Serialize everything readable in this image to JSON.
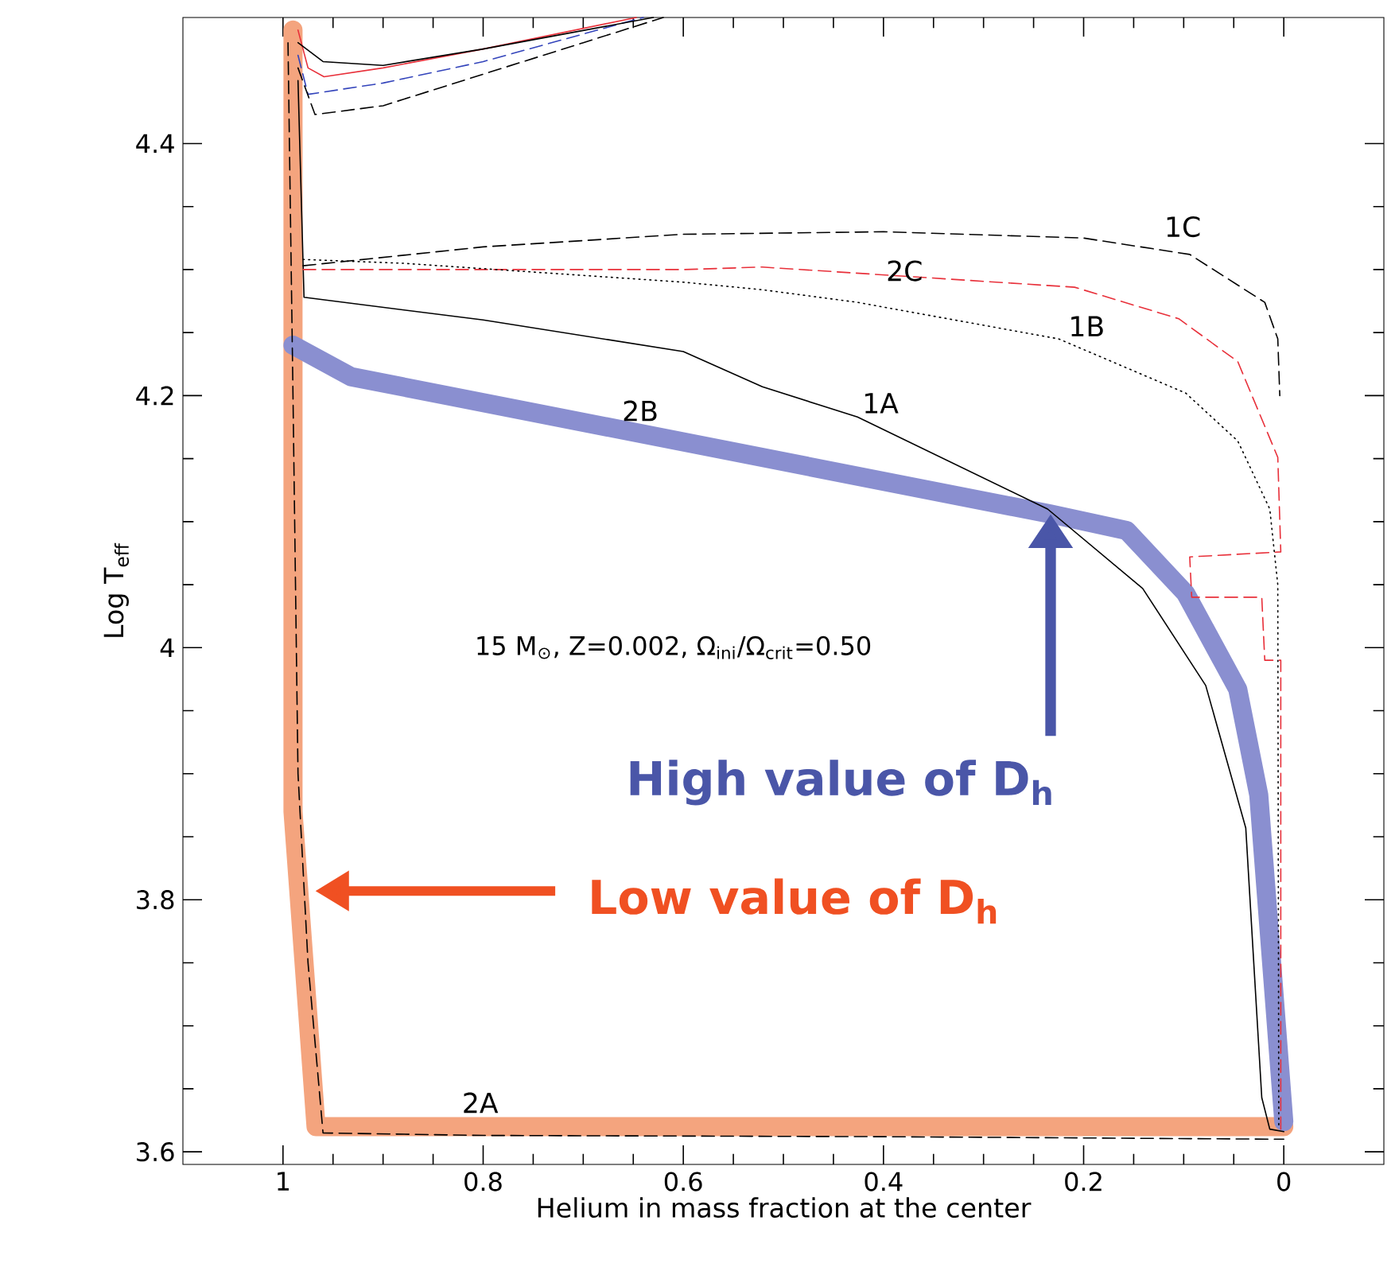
{
  "chart_data": {
    "type": "line",
    "xlabel": "Helium in mass fraction at the center",
    "ylabel": "Log T$_{eff}$",
    "xlim": [
      1.1,
      -0.1
    ],
    "ylim": [
      3.59,
      4.5
    ],
    "xticks": [
      1,
      0.8,
      0.6,
      0.4,
      0.2,
      0
    ],
    "yticks": [
      3.6,
      3.8,
      {
        "value": 4,
        "label": "4"
      },
      4.2,
      4.4
    ],
    "grid": false,
    "marker": "none",
    "series": [
      {
        "color": "#f4a47e",
        "line_style": "solid",
        "x": [
          0.99,
          0.99,
          0.967,
          0.0
        ],
        "values": [
          4.49,
          3.87,
          3.62,
          3.62
        ]
      },
      {
        "color": "#8a8fd0",
        "line_style": "solid",
        "x": [
          0.99,
          0.932,
          0.233,
          0.157,
          0.098,
          0.046,
          0.025,
          0.0
        ],
        "values": [
          4.24,
          4.215,
          4.106,
          4.093,
          4.043,
          3.967,
          3.883,
          3.624
        ]
      },
      {
        "color": "#000000",
        "line_style": "solid",
        "x": [
          0.985,
          0.979,
          0.8,
          0.6,
          0.521,
          0.426,
          0.236,
          0.141,
          0.078,
          0.038,
          0.022,
          0.014,
          0.0
        ],
        "values": [
          4.45,
          4.278,
          4.26,
          4.235,
          4.207,
          4.183,
          4.11,
          4.047,
          3.97,
          3.857,
          3.643,
          3.618,
          3.616
        ]
      },
      {
        "color": "#000000",
        "line_style": "dashed",
        "x": [
          0.98,
          0.8,
          0.6,
          0.4,
          0.2,
          0.094,
          0.019,
          0.006,
          0.004
        ],
        "values": [
          4.303,
          4.318,
          4.328,
          4.33,
          4.325,
          4.312,
          4.274,
          4.245,
          4.2
        ]
      },
      {
        "color": "#e8303a",
        "line_style": "dashed",
        "x": [
          0.98,
          0.6,
          0.521,
          0.209,
          0.105,
          0.046,
          0.006,
          0.003,
          0.094,
          0.092,
          0.022,
          0.019,
          0.003,
          0.003
        ],
        "values": [
          4.3,
          4.3,
          4.302,
          4.286,
          4.261,
          4.227,
          4.151,
          4.076,
          4.072,
          4.04,
          4.04,
          3.99,
          3.99,
          3.618
        ]
      },
      {
        "color": "#000000",
        "line_style": "dotted",
        "x": [
          0.98,
          0.88,
          0.6,
          0.521,
          0.426,
          0.225,
          0.098,
          0.046,
          0.014,
          0.006,
          0.005
        ],
        "values": [
          4.308,
          4.305,
          4.29,
          4.284,
          4.274,
          4.245,
          4.202,
          4.164,
          4.11,
          4.05,
          3.62
        ]
      },
      {
        "color": "#000000",
        "line_style": "dashed",
        "x": [
          0.995,
          0.99,
          0.985,
          0.975,
          0.96,
          0.8,
          0.4,
          0.0
        ],
        "values": [
          4.48,
          4.2,
          3.9,
          3.75,
          3.615,
          3.613,
          3.612,
          3.61
        ]
      },
      {
        "color": "#e8303a",
        "line_style": "solid",
        "x": [
          0.985,
          0.975,
          0.959,
          0.9,
          0.8,
          0.647
        ],
        "values": [
          4.49,
          4.46,
          4.453,
          4.46,
          4.475,
          4.5
        ]
      },
      {
        "color": "#3344bb",
        "line_style": "dashed",
        "x": [
          0.985,
          0.975,
          0.9,
          0.8,
          0.64
        ],
        "values": [
          4.47,
          4.439,
          4.448,
          4.465,
          4.5
        ]
      },
      {
        "color": "#000000",
        "line_style": "dashed",
        "x": [
          0.985,
          0.968,
          0.9,
          0.8,
          0.7,
          0.62
        ],
        "values": [
          4.46,
          4.423,
          4.43,
          4.455,
          4.48,
          4.5
        ]
      },
      {
        "color": "#000000",
        "line_style": "solid",
        "x": [
          0.985,
          0.96,
          0.9,
          0.8,
          0.63
        ],
        "values": [
          4.48,
          4.465,
          4.462,
          4.475,
          4.5
        ]
      }
    ],
    "annotations": [
      "1A",
      "1B",
      "1C",
      "2C",
      "2B",
      "2A",
      "15 M$_{⊙}$, Z=0.002, Ω$_{ini}$/Ω$_{crit}$=0.50",
      "High value of D$_{h}$",
      "Low value of D$_{h}$"
    ]
  }
}
